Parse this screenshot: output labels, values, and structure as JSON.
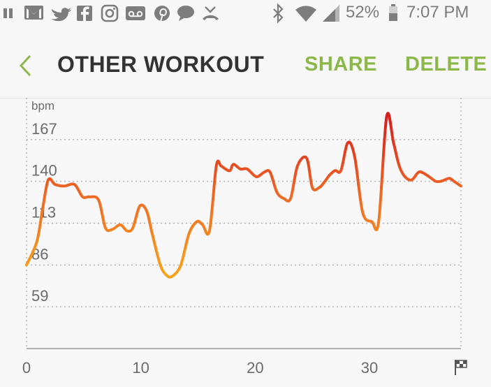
{
  "status_bar": {
    "battery": "52%",
    "time": "7:07 PM",
    "left_icons": [
      "pause-icon",
      "gmail-icon",
      "twitter-icon",
      "facebook-icon",
      "instagram-icon",
      "voicemail-icon",
      "pinterest-icon",
      "messenger-icon",
      "missed-call-icon"
    ],
    "right_icons": [
      "bluetooth-icon",
      "wifi-icon",
      "signal-icon",
      "battery-icon"
    ]
  },
  "toolbar": {
    "title": "OTHER WORKOUT",
    "share_label": "SHARE",
    "delete_label": "DELETE"
  },
  "colors": {
    "accent": "#8bb849",
    "line_low": "#f7a21b",
    "line_mid": "#ee6a25",
    "line_high": "#d81e1e"
  },
  "chart_data": {
    "type": "line",
    "ylabel": "bpm",
    "yticks": [
      59,
      86,
      113,
      140,
      167
    ],
    "xticks": [
      0,
      10,
      20,
      30
    ],
    "xlim": [
      0,
      38
    ],
    "ylim": [
      32,
      194
    ],
    "grid": true,
    "end_marker": "finish-flag-icon",
    "series": [
      {
        "x": [
          0,
          0.9,
          1.4,
          1.9,
          2.5,
          3.3,
          4.2,
          4.9,
          5.5,
          6.3,
          6.9,
          7.5,
          8.2,
          8.8,
          9.3,
          9.9,
          10.5,
          11.0,
          11.7,
          12.3,
          12.8,
          13.5,
          14.2,
          14.9,
          15.4,
          16.0,
          16.6,
          17.0,
          17.4,
          17.8,
          18.1,
          18.7,
          19.3,
          20.1,
          20.8,
          21.3,
          21.9,
          22.5,
          23.1,
          23.7,
          24.5,
          25.0,
          25.6,
          26.1,
          26.5,
          27.0,
          27.5,
          28.1,
          28.7,
          29.4,
          30.2,
          30.8,
          31.5,
          32.1,
          32.6,
          33.1,
          33.7,
          34.3,
          34.8,
          35.4,
          35.8,
          36.2,
          36.6,
          37.0,
          37.4,
          38.0
        ],
        "y": [
          86,
          101,
          122,
          141,
          138,
          137,
          138,
          130,
          130,
          128,
          110,
          109,
          112,
          108,
          110,
          124,
          121,
          106,
          86,
          79,
          79,
          86,
          106,
          114,
          112,
          108,
          150,
          150,
          148,
          147,
          151,
          148,
          148,
          143,
          146,
          146,
          133,
          129,
          129,
          150,
          155,
          136,
          136,
          140,
          144,
          147,
          147,
          165,
          156,
          120,
          114,
          114,
          182,
          165,
          150,
          143,
          141,
          146,
          145,
          142,
          140,
          140,
          141,
          142,
          140,
          137
        ]
      }
    ]
  }
}
